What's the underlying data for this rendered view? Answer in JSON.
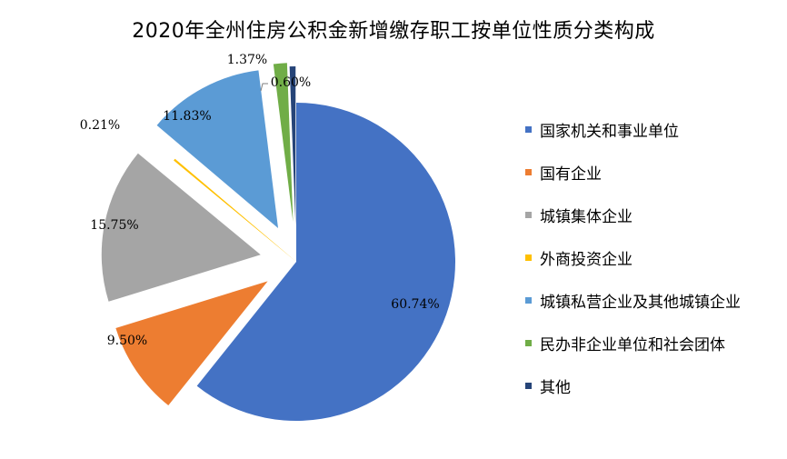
{
  "chart_data": {
    "type": "pie",
    "title": "2020年全州住房公积金新增缴存职工按单位性质分类构成",
    "legend_position": "right",
    "series": [
      {
        "name": "国家机关和事业单位",
        "value": 60.74,
        "label": "60.74%",
        "color": "#4472C4"
      },
      {
        "name": "国有企业",
        "value": 9.5,
        "label": "9.50%",
        "color": "#ED7D31"
      },
      {
        "name": "城镇集体企业",
        "value": 15.75,
        "label": "15.75%",
        "color": "#A5A5A5"
      },
      {
        "name": "外商投资企业",
        "value": 0.21,
        "label": "0.21%",
        "color": "#FFC000"
      },
      {
        "name": "城镇私营企业及其他城镇企业",
        "value": 11.83,
        "label": "11.83%",
        "color": "#5B9BD5"
      },
      {
        "name": "民办非企业单位和社会团体",
        "value": 1.37,
        "label": "1.37%",
        "color": "#70AD47"
      },
      {
        "name": "其他",
        "value": 0.6,
        "label": "0.60%",
        "color": "#264478"
      }
    ]
  }
}
